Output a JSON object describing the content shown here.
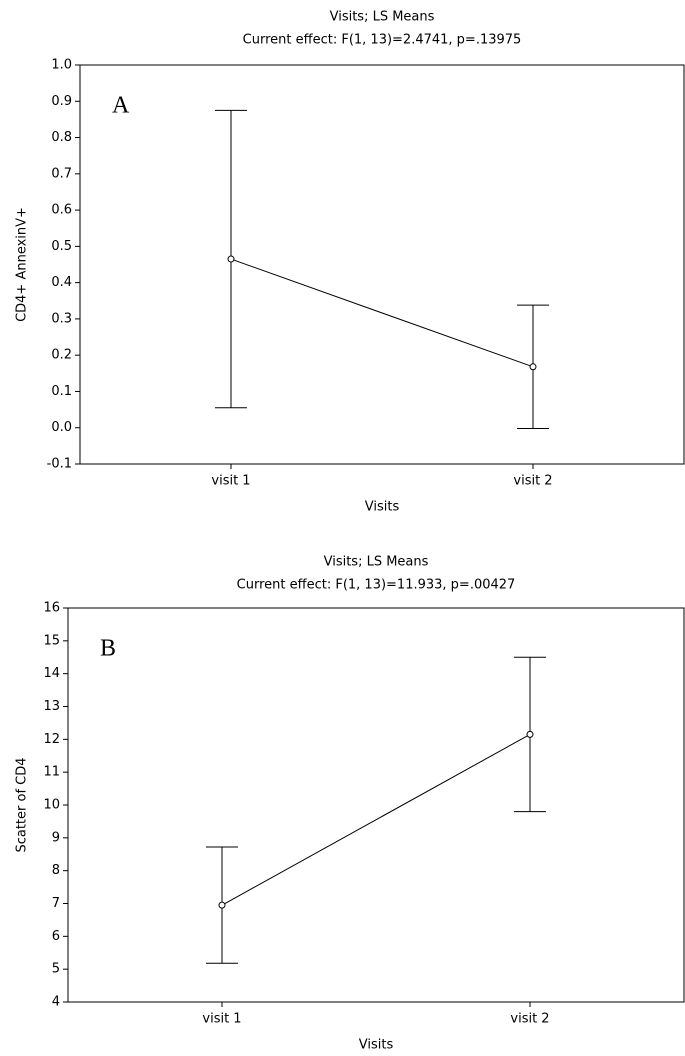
{
  "chart_data": [
    {
      "type": "line",
      "title": "Visits; LS Means",
      "subtitle": "Current effect: F(1, 13)=2.4741, p=.13975",
      "annotation": "A",
      "x_label": "Visits",
      "y_label": "CD4+ AnnexinV+",
      "categories": [
        "visit 1",
        "visit 2"
      ],
      "series": [
        {
          "color": "#000000",
          "values": [
            0.465,
            0.168
          ],
          "errors": [
            0.41,
            0.17
          ]
        }
      ],
      "ylim": [
        -0.1,
        1.0
      ],
      "yticks": [
        -0.1,
        {
          "value": 0,
          "label": "0.0"
        },
        0.1,
        0.2,
        0.3,
        0.4,
        0.5,
        0.6,
        0.7,
        0.8,
        0.9,
        {
          "value": 1,
          "label": "1.0"
        }
      ]
    },
    {
      "type": "line",
      "title": "Visits; LS Means",
      "subtitle": "Current effect: F(1, 13)=11.933, p=.00427",
      "annotation": "B",
      "x_label": "Visits",
      "y_label": "Scatter of CD4",
      "categories": [
        "visit 1",
        "visit 2"
      ],
      "series": [
        {
          "color": "#000000",
          "values": [
            6.95,
            12.15
          ],
          "errors": [
            1.77,
            2.35
          ]
        }
      ],
      "ylim": [
        4,
        16
      ],
      "yticks": [
        4,
        5,
        6,
        7,
        8,
        9,
        10,
        11,
        12,
        13,
        14,
        15,
        16
      ]
    }
  ]
}
